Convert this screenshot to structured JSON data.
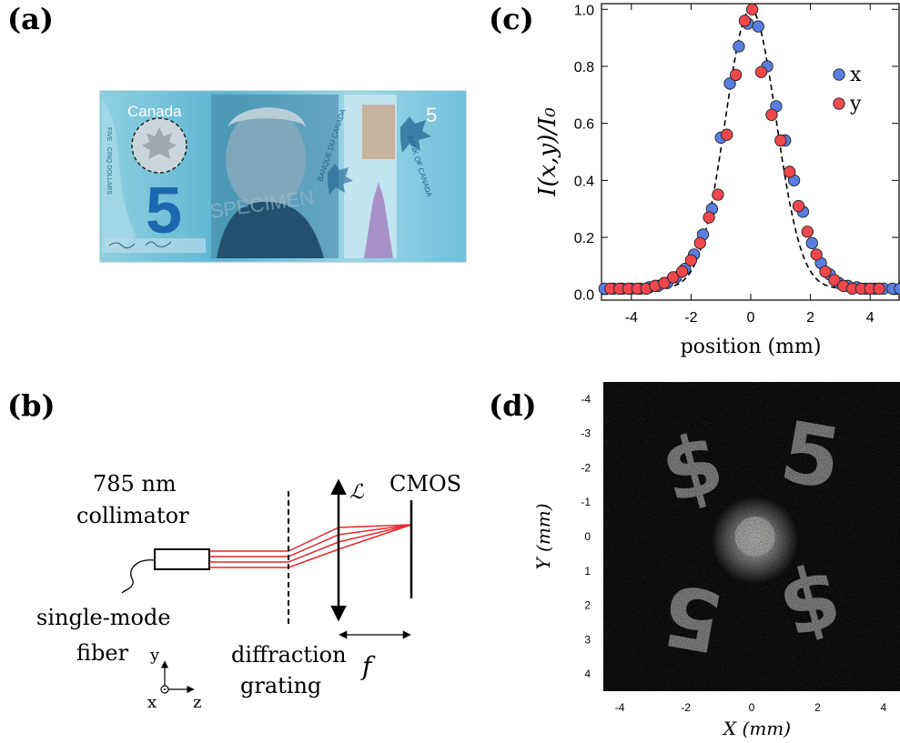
{
  "panels": {
    "a": {
      "label": "(a)"
    },
    "b": {
      "label": "(b)"
    },
    "c": {
      "label": "(c)"
    },
    "d": {
      "label": "(d)"
    }
  },
  "banknote": {
    "country": "Canada",
    "denomination": "5",
    "bank_fr": "BANQUE DU CANADA",
    "bank_en": "BANK OF CANADA",
    "words": "FIVE · CINQ DOLLARS",
    "watermark": "SPECIMEN",
    "colors": {
      "primary": "#4aa7c9",
      "light": "#bfe3ee",
      "dark": "#1f6fa3"
    }
  },
  "setup": {
    "collimator_line1": "785 nm",
    "collimator_line2": "collimator",
    "fiber_line1": "single-mode",
    "fiber_line2": "fiber",
    "grating_line1": "diffraction",
    "grating_line2": "grating",
    "lens_symbol": "ℒ",
    "detector": "CMOS",
    "focal": "f",
    "axis_y": "y",
    "axis_x": "x",
    "axis_z": "z",
    "beam_color": "#e8262b"
  },
  "chart_data": [
    {
      "type": "scatter",
      "panel": "c",
      "xlabel": "position (mm)",
      "ylabel": "I(x,y)/I₀",
      "xlim": [
        -5,
        5
      ],
      "ylim": [
        -0.02,
        1.02
      ],
      "xticks": [
        -4,
        -2,
        0,
        2,
        4
      ],
      "yticks": [
        0.0,
        0.2,
        0.4,
        0.6,
        0.8,
        1.0
      ],
      "xtick_labels": [
        "-4",
        "-2",
        "0",
        "2",
        "4"
      ],
      "ytick_labels": [
        "0.0",
        "0.2",
        "0.4",
        "0.6",
        "0.8",
        "1.0"
      ],
      "legend_position": "top-right",
      "series": [
        {
          "name": "x",
          "color": "#5b7fe0",
          "x": [
            -4.9,
            -4.6,
            -4.3,
            -4.0,
            -3.7,
            -3.4,
            -3.1,
            -2.8,
            -2.5,
            -2.2,
            -1.9,
            -1.6,
            -1.3,
            -1.0,
            -0.7,
            -0.4,
            -0.1,
            0.25,
            0.55,
            0.85,
            1.15,
            1.45,
            1.75,
            2.05,
            2.35,
            2.65,
            2.95,
            3.25,
            3.55,
            3.85,
            4.15,
            4.45,
            4.75,
            5.0
          ],
          "y": [
            0.02,
            0.02,
            0.02,
            0.02,
            0.02,
            0.025,
            0.03,
            0.04,
            0.06,
            0.09,
            0.14,
            0.21,
            0.3,
            0.55,
            0.74,
            0.87,
            0.95,
            0.94,
            0.8,
            0.66,
            0.54,
            0.4,
            0.29,
            0.18,
            0.11,
            0.07,
            0.04,
            0.03,
            0.025,
            0.02,
            0.02,
            0.02,
            0.02,
            0.02
          ]
        },
        {
          "name": "y",
          "color": "#f0474e",
          "x": [
            -4.7,
            -4.4,
            -4.1,
            -3.8,
            -3.5,
            -3.2,
            -2.9,
            -2.6,
            -2.3,
            -2.0,
            -1.7,
            -1.4,
            -1.1,
            -0.8,
            -0.5,
            -0.2,
            0.05,
            0.35,
            0.7,
            1.0,
            1.3,
            1.6,
            1.9,
            2.2,
            2.5,
            2.8,
            3.1,
            3.4,
            3.7,
            4.0,
            4.3
          ],
          "y": [
            0.02,
            0.02,
            0.02,
            0.02,
            0.02,
            0.03,
            0.04,
            0.06,
            0.08,
            0.12,
            0.18,
            0.27,
            0.35,
            0.56,
            0.77,
            0.96,
            1.0,
            0.78,
            0.63,
            0.54,
            0.43,
            0.31,
            0.22,
            0.14,
            0.08,
            0.05,
            0.03,
            0.02,
            0.02,
            0.02,
            0.02
          ]
        }
      ],
      "fit": {
        "type": "gaussian",
        "mu": 0,
        "sigma": 0.85,
        "offset": 0.02,
        "amplitude": 0.98,
        "style": "dashed"
      }
    },
    {
      "type": "heatmap",
      "panel": "d",
      "xlabel": "X (mm)",
      "ylabel": "Y (mm)",
      "xlim": [
        -4.5,
        4.5
      ],
      "ylim": [
        -4.5,
        4.5
      ],
      "xticks": [
        -4,
        -2,
        0,
        2,
        4
      ],
      "yticks": [
        -4,
        -3,
        -2,
        -1,
        0,
        1,
        2,
        3,
        4
      ],
      "xtick_labels": [
        "-4",
        "-2",
        "0",
        "2",
        "4"
      ],
      "ytick_labels": [
        "-4",
        "-3",
        "-2",
        "-1",
        "0",
        "1",
        "2",
        "3",
        "4"
      ]
    }
  ]
}
